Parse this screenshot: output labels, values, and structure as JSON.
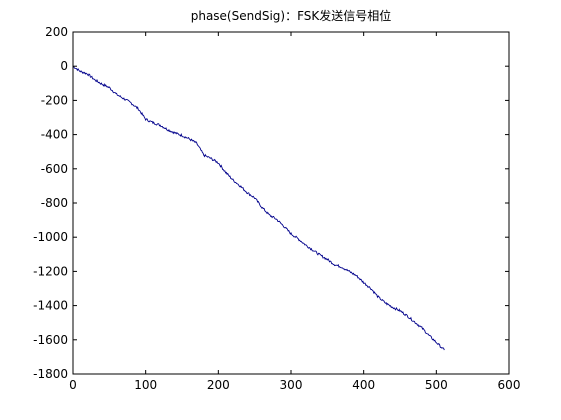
{
  "chart_data": {
    "type": "line",
    "title": "phase(SendSig)：FSK发送信号相位",
    "xlabel": "",
    "ylabel": "",
    "xlim": [
      0,
      600
    ],
    "ylim": [
      -1800,
      200
    ],
    "x_ticks": [
      0,
      100,
      200,
      300,
      400,
      500,
      600
    ],
    "y_ticks": [
      200,
      0,
      -200,
      -400,
      -600,
      -800,
      -1000,
      -1200,
      -1400,
      -1600,
      -1800
    ],
    "x_tick_labels": [
      "0",
      "100",
      "200",
      "300",
      "400",
      "500",
      "600"
    ],
    "y_tick_labels": [
      "200",
      "0",
      "-200",
      "-400",
      "-600",
      "-800",
      "-1000",
      "-1200",
      "-1400",
      "-1600",
      "-1800"
    ],
    "grid": false,
    "legend": "none",
    "series": [
      {
        "color": "#00008b",
        "x": [
          0,
          10,
          20,
          30,
          40,
          50,
          60,
          70,
          80,
          90,
          100,
          110,
          120,
          130,
          140,
          150,
          160,
          170,
          180,
          190,
          200,
          210,
          220,
          230,
          240,
          250,
          260,
          270,
          280,
          290,
          300,
          310,
          320,
          330,
          340,
          350,
          360,
          370,
          380,
          390,
          400,
          410,
          420,
          430,
          440,
          450,
          460,
          470,
          480,
          490,
          500,
          511
        ],
        "y": [
          0,
          -30,
          -45,
          -80,
          -105,
          -125,
          -165,
          -190,
          -215,
          -250,
          -310,
          -330,
          -345,
          -370,
          -390,
          -405,
          -425,
          -450,
          -520,
          -540,
          -565,
          -620,
          -665,
          -700,
          -740,
          -770,
          -825,
          -870,
          -895,
          -935,
          -980,
          -1010,
          -1045,
          -1075,
          -1105,
          -1130,
          -1160,
          -1175,
          -1200,
          -1225,
          -1265,
          -1300,
          -1350,
          -1385,
          -1410,
          -1430,
          -1460,
          -1495,
          -1530,
          -1575,
          -1615,
          -1660
        ]
      }
    ]
  }
}
